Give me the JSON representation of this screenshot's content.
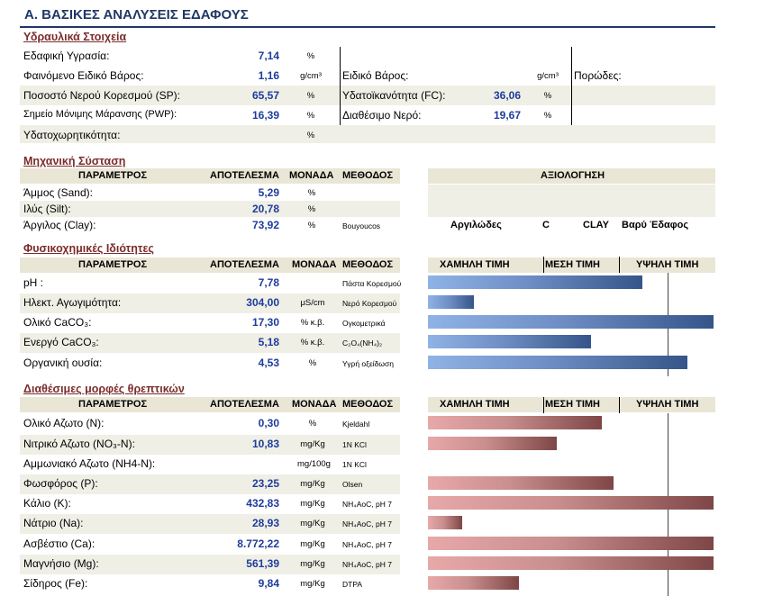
{
  "title": "Α. ΒΑΣΙΚΕΣ ΑΝΑΛΥΣΕΙΣ ΕΔΑΦΟΥΣ",
  "hydraulic": {
    "heading": "Υδραυλικά Στοιχεία",
    "rows": [
      {
        "label": "Εδαφική Υγρασία:",
        "value": "7,14",
        "unit": "%"
      },
      {
        "label": "Φαινόμενο Ειδικό Βάρος:",
        "value": "1,16",
        "unit": "g/cm³"
      },
      {
        "label": "Ποσοστό Νερού Κορεσμού (SP):",
        "value": "65,57",
        "unit": "%"
      },
      {
        "label": "Σημείο Μόνιμης Μάρανσης (PWP):",
        "value": "16,39",
        "unit": "%"
      },
      {
        "label": "Υδατοχωρητικότητα:",
        "value": "",
        "unit": "%"
      }
    ],
    "mid": [
      {
        "label": "Ειδικό Βάρος:",
        "value": "",
        "unit": "g/cm³"
      },
      {
        "label": "Υδατοϊκανότητα (FC):",
        "value": "36,06",
        "unit": "%"
      },
      {
        "label": "Διαθέσιμο Νερό:",
        "value": "19,67",
        "unit": "%"
      }
    ],
    "porosity_label": "Πορώδες:"
  },
  "mechanical": {
    "heading": "Μηχανική Σύσταση",
    "headers": {
      "param": "ΠΑΡΑΜΕΤΡΟΣ",
      "result": "ΑΠΟΤΕΛΕΣΜΑ",
      "unit": "ΜΟΝΑΔΑ",
      "method": "ΜΕΘΟΔΟΣ",
      "eval": "ΑΞΙΟΛΟΓΗΣΗ"
    },
    "rows": [
      {
        "label": "Άμμος (Sand):",
        "value": "5,29",
        "unit": "%",
        "method": ""
      },
      {
        "label": "Ιλύς (Silt):",
        "value": "20,78",
        "unit": "%",
        "method": ""
      },
      {
        "label": "Άργιλος (Clay):",
        "value": "73,92",
        "unit": "%",
        "method": "Bouyoucos"
      }
    ],
    "evaluation": [
      "Αργιλώδες",
      "C",
      "CLAY",
      "Βαρύ Έδαφος"
    ]
  },
  "physchem": {
    "heading": "Φυσικοχημικές Ιδιότητες",
    "headers": {
      "param": "ΠΑΡΑΜΕΤΡΟΣ",
      "result": "ΑΠΟΤΕΛΕΣΜΑ",
      "unit": "ΜΟΝΑΔΑ",
      "method": "ΜΕΘΟΔΟΣ",
      "low": "ΧΑΜΗΛΗ ΤΙΜΗ",
      "mid": "ΜΕΣΗ ΤΙΜΗ",
      "high": "ΥΨΗΛΗ ΤΙΜΗ"
    },
    "rows": [
      {
        "label": "pH :",
        "value": "7,78",
        "unit": "",
        "method": "Πάστα Κορεσμού",
        "level": 0.75
      },
      {
        "label": "Ηλεκτ. Αγωγιμότητα:",
        "value": "304,00",
        "unit": "μS/cm",
        "method": "Νερό Κορεσμού",
        "level": 0.16
      },
      {
        "label": "Ολικό CaCO₃:",
        "value": "17,30",
        "unit": "% κ.β.",
        "method": "Ογκομετρικά",
        "level": 1.0
      },
      {
        "label": "Ενεργό CaCO₃:",
        "value": "5,18",
        "unit": "% κ.β.",
        "method": "C₂O₄(NH₄)₂",
        "level": 0.57
      },
      {
        "label": "Οργανική ουσία:",
        "value": "4,53",
        "unit": "%",
        "method": "Υγρή οξείδωση",
        "level": 0.91
      }
    ]
  },
  "nutrients": {
    "heading": "Διαθέσιμες μορφές θρεπτικών",
    "headers": {
      "param": "ΠΑΡΑΜΕΤΡΟΣ",
      "result": "ΑΠΟΤΕΛΕΣΜΑ",
      "unit": "ΜΟΝΑΔΑ",
      "method": "ΜΕΘΟΔΟΣ",
      "low": "ΧΑΜΗΛΗ ΤΙΜΗ",
      "mid": "ΜΕΣΗ ΤΙΜΗ",
      "high": "ΥΨΗΛΗ ΤΙΜΗ"
    },
    "rows": [
      {
        "label": "Ολικό Αζωτο (N):",
        "value": "0,30",
        "unit": "%",
        "method": "Kjeldahl",
        "level": 0.61
      },
      {
        "label": "Νιτρικό Αζωτο (NO₃-N):",
        "value": "10,83",
        "unit": "mg/Kg",
        "method": "1N KCl",
        "level": 0.45
      },
      {
        "label": "Αμμωνιακό Αζωτο (NH4-N):",
        "value": "",
        "unit": "mg/100g",
        "method": "1N KCl",
        "level": 0
      },
      {
        "label": "Φωσφόρος (P):",
        "value": "23,25",
        "unit": "mg/Kg",
        "method": "Olsen",
        "level": 0.65
      },
      {
        "label": "Κάλιο (K):",
        "value": "432,83",
        "unit": "mg/Kg",
        "method": "NH₄AoC, pH 7",
        "level": 1.0
      },
      {
        "label": "Νάτριο (Na):",
        "value": "28,93",
        "unit": "mg/Kg",
        "method": "NH₄AoC, pH 7",
        "level": 0.12
      },
      {
        "label": "Ασβέστιο (Ca):",
        "value": "8.772,22",
        "unit": "mg/Kg",
        "method": "NH₄AoC, pH 7",
        "level": 1.0
      },
      {
        "label": "Μαγνήσιο (Mg):",
        "value": "561,39",
        "unit": "mg/Kg",
        "method": "NH₄AoC, pH 7",
        "level": 1.0
      },
      {
        "label": "Σίδηρος (Fe):",
        "value": "9,84",
        "unit": "mg/Kg",
        "method": "DTPA",
        "level": 0.32
      }
    ]
  }
}
